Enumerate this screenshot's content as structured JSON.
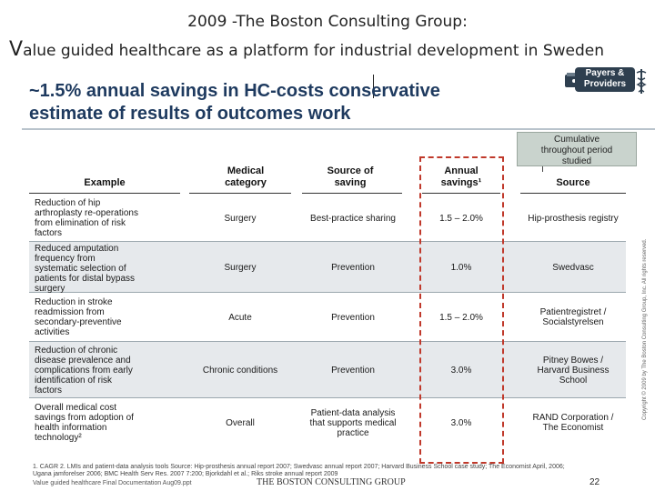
{
  "slide": {
    "top_title": "2009 -The Boston Consulting Group:",
    "sub_title_initial": "V",
    "sub_title_rest": "alue guided healthcare as a platform for industrial development in Sweden",
    "headline_line1": "~1.5% annual savings in HC-costs conservative",
    "headline_line2": "estimate of results of outcomes work",
    "tag_line1": "Payers &",
    "tag_line2": "Providers",
    "cumulative_line1": "Cumulative",
    "cumulative_line2": "throughout period",
    "cumulative_line3": "studied"
  },
  "table": {
    "headers": {
      "example": "Example",
      "category_l1": "Medical",
      "category_l2": "category",
      "source_saving_l1": "Source of",
      "source_saving_l2": "saving",
      "annual_l1": "Annual",
      "annual_l2": "savings¹",
      "source": "Source"
    },
    "rows": [
      {
        "example": [
          "Reduction of hip",
          "arthroplasty re-operations",
          "from elimination of risk",
          "factors"
        ],
        "category": [
          "Surgery"
        ],
        "source_saving": [
          "Best-practice sharing"
        ],
        "savings": "1.5 – 2.0%",
        "source": [
          "Hip-prosthesis registry"
        ]
      },
      {
        "example": [
          "Reduced amputation",
          "frequency from",
          "systematic selection of",
          "patients for distal bypass",
          "surgery"
        ],
        "category": [
          "Surgery"
        ],
        "source_saving": [
          "Prevention"
        ],
        "savings": "1.0%",
        "source": [
          "Swedvasc"
        ]
      },
      {
        "example": [
          "Reduction in stroke",
          "readmission from",
          "secondary-preventive",
          "activities"
        ],
        "category": [
          "Acute"
        ],
        "source_saving": [
          "Prevention"
        ],
        "savings": "1.5 – 2.0%",
        "source": [
          "Patientregistret /",
          "Socialstyrelsen"
        ]
      },
      {
        "example": [
          "Reduction of chronic",
          "disease prevalence and",
          "complications from early",
          "identification of risk",
          "factors"
        ],
        "category": [
          "Chronic conditions"
        ],
        "source_saving": [
          "Prevention"
        ],
        "savings": "3.0%",
        "source": [
          "Pitney Bowes /",
          "Harvard Business",
          "School"
        ]
      },
      {
        "example": [
          "Overall medical cost",
          "savings from adoption of",
          "health information",
          "technology²"
        ],
        "category": [
          "Overall"
        ],
        "source_saving": [
          "Patient-data analysis",
          "that supports medical",
          "practice"
        ],
        "savings": "3.0%",
        "source": [
          "RAND Corporation /",
          "The Economist"
        ]
      }
    ]
  },
  "footer": {
    "footnote_line1": "1. CAGR 2. LMIs and patient-data analysis tools  Source: Hip-prosthesis annual report 2007; Swedvasc annual report 2007; Harvard Business School case study; The Economist April, 2006;",
    "footnote_line2": "Ugana jamforelser 2006; BMC Health Serv Res. 2007 7:200; Bjorkdahl et al.; Riks stroke annual report 2009",
    "left": "Value guided healthcare  Final Documentation  Aug09.ppt",
    "brand": "THE BOSTON CONSULTING GROUP",
    "page": "22",
    "copyright": "Copyright © 2009 by The Boston Consulting Group, Inc. All rights reserved."
  },
  "colors": {
    "headline": "#1e3a5f",
    "highlight_border": "#c0392b",
    "shaded_row": "#e6e9ec"
  }
}
